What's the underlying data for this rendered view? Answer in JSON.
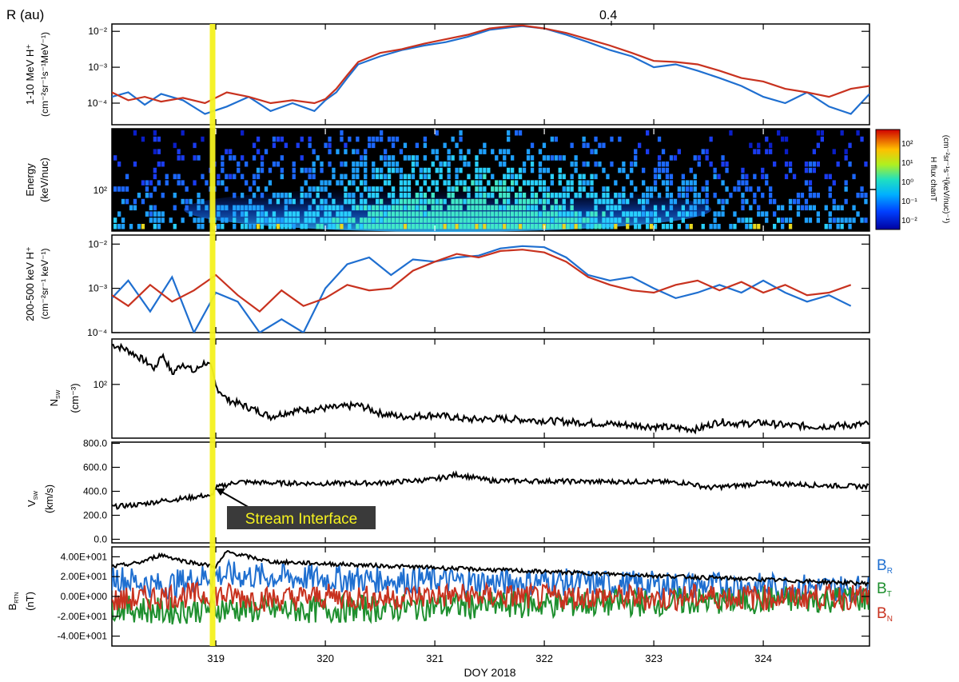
{
  "header": {
    "r_label": "R (au)",
    "r_tick": "0.4"
  },
  "xaxis": {
    "title": "DOY 2018",
    "range": [
      318.05,
      324.97
    ],
    "ticks": [
      "319",
      "320",
      "321",
      "322",
      "323",
      "324"
    ],
    "tick_values": [
      319,
      320,
      321,
      322,
      323,
      324
    ]
  },
  "interface": {
    "doy": 318.97,
    "label": "Stream Interface",
    "color": "#f5f21f"
  },
  "colors": {
    "blue": "#1f6fd0",
    "red": "#c8321f",
    "green": "#1e8f2e",
    "black": "#000000",
    "yellow": "#f5f21f"
  },
  "colorbar": {
    "title_line1": "H flux chanT",
    "title_line2": "(cm⁻²sr⁻¹s⁻¹(keV/nuc)⁻¹)",
    "ticks": [
      "10²",
      "10¹",
      "10⁰",
      "10⁻¹",
      "10⁻²"
    ]
  },
  "panels": [
    {
      "id": "flux-1-10MeV",
      "ylabel_line1": "1-10 MeV H⁺",
      "ylabel_line2": "(cm⁻²sr⁻¹s⁻¹MeV⁻¹)",
      "scale": "log",
      "yrange": [
        2.5e-05,
        0.016
      ],
      "yticks": [
        "10⁻²",
        "10⁻³",
        "10⁻⁴"
      ],
      "ytick_values": [
        0.01,
        0.001,
        0.0001
      ]
    },
    {
      "id": "energy-spectrogram",
      "ylabel_line1": "Energy",
      "ylabel_line2": "(keV/nuc)",
      "scale": "log",
      "yticks": [
        "10²"
      ]
    },
    {
      "id": "flux-200-500keV",
      "ylabel_line1": "200-500 keV H⁺",
      "ylabel_line2": "(cm⁻²sr⁻¹ keV⁻¹)",
      "scale": "log",
      "yrange": [
        0.0001,
        0.016
      ],
      "yticks": [
        "10⁻²",
        "10⁻³",
        "10⁻⁴"
      ],
      "ytick_values": [
        0.01,
        0.001,
        0.0001
      ]
    },
    {
      "id": "density",
      "ylabel_line1": "N",
      "ylabel_sub": "SW",
      "ylabel_line2": "(cm⁻³)",
      "scale": "log",
      "yrange": [
        12,
        600
      ],
      "yticks": [
        "10²"
      ],
      "ytick_values": [
        100
      ]
    },
    {
      "id": "speed",
      "ylabel_line1": "V",
      "ylabel_sub": "SW",
      "ylabel_line2": "(km/s)",
      "scale": "linear",
      "yrange": [
        -30,
        810
      ],
      "yticks": [
        "800.0",
        "600.0",
        "400.0",
        "200.0",
        "0.0"
      ],
      "ytick_values": [
        800,
        600,
        400,
        200,
        0
      ]
    },
    {
      "id": "magnetic-field",
      "ylabel_line1": "B",
      "ylabel_sub": "RTN",
      "ylabel_line2": "(nT)",
      "scale": "linear",
      "yrange": [
        -50,
        50
      ],
      "yticks": [
        "4.00E+001",
        "2.00E+001",
        "0.00E+000",
        "-2.00E+001",
        "-4.00E+001"
      ],
      "ytick_values": [
        40,
        20,
        0,
        -20,
        -40
      ]
    }
  ],
  "legend": [
    {
      "main": "B",
      "sub": "R",
      "color": "#1f6fd0"
    },
    {
      "main": "B",
      "sub": "T",
      "color": "#1e8f2e"
    },
    {
      "main": "B",
      "sub": "N",
      "color": "#c8321f"
    }
  ],
  "chart_data": {
    "type": "line",
    "x_axis": "DOY 2018",
    "panels": [
      {
        "panel": "1-10 MeV H+",
        "series": [
          {
            "color": "#1f6fd0",
            "x": [
              318.05,
              318.2,
              318.35,
              318.5,
              318.7,
              318.9,
              319.1,
              319.3,
              319.5,
              319.7,
              319.9,
              320.0,
              320.1,
              320.2,
              320.3,
              320.5,
              320.7,
              320.9,
              321.1,
              321.3,
              321.5,
              321.7,
              321.8,
              322.0,
              322.2,
              322.4,
              322.6,
              322.8,
              323.0,
              323.2,
              323.4,
              323.6,
              323.8,
              324.0,
              324.2,
              324.4,
              324.6,
              324.8,
              324.97
            ],
            "y": [
              0.00015,
              0.0002,
              9e-05,
              0.00018,
              0.00012,
              5e-05,
              8e-05,
              0.00015,
              6e-05,
              0.0001,
              6e-05,
              0.00012,
              0.0002,
              0.0005,
              0.0012,
              0.002,
              0.003,
              0.004,
              0.005,
              0.007,
              0.011,
              0.013,
              0.014,
              0.012,
              0.008,
              0.005,
              0.003,
              0.002,
              0.001,
              0.0012,
              0.0008,
              0.0005,
              0.0003,
              0.00015,
              0.0001,
              0.0002,
              8e-05,
              5e-05,
              0.00018
            ]
          },
          {
            "color": "#c8321f",
            "x": [
              318.05,
              318.2,
              318.35,
              318.5,
              318.7,
              318.9,
              319.1,
              319.3,
              319.5,
              319.7,
              319.9,
              320.0,
              320.1,
              320.2,
              320.3,
              320.5,
              320.7,
              320.9,
              321.1,
              321.3,
              321.5,
              321.7,
              321.8,
              322.0,
              322.2,
              322.4,
              322.6,
              322.8,
              323.0,
              323.2,
              323.4,
              323.6,
              323.8,
              324.0,
              324.2,
              324.4,
              324.6,
              324.8,
              324.97
            ],
            "y": [
              0.0002,
              0.00012,
              0.00015,
              0.00011,
              0.00014,
              0.0001,
              0.0002,
              0.00015,
              0.0001,
              0.00012,
              0.0001,
              0.00013,
              0.00025,
              0.0006,
              0.0014,
              0.0025,
              0.0032,
              0.0045,
              0.006,
              0.008,
              0.012,
              0.014,
              0.0145,
              0.012,
              0.009,
              0.006,
              0.004,
              0.0025,
              0.0015,
              0.0014,
              0.0012,
              0.0008,
              0.0005,
              0.0004,
              0.00025,
              0.0002,
              0.00015,
              0.00025,
              0.0003
            ]
          }
        ]
      },
      {
        "panel": "200-500 keV H+",
        "series": [
          {
            "color": "#1f6fd0",
            "x": [
              318.05,
              318.2,
              318.4,
              318.6,
              318.8,
              319.0,
              319.2,
              319.4,
              319.6,
              319.8,
              320.0,
              320.2,
              320.4,
              320.6,
              320.8,
              321.0,
              321.2,
              321.4,
              321.6,
              321.8,
              322.0,
              322.2,
              322.4,
              322.6,
              322.8,
              323.0,
              323.2,
              323.4,
              323.6,
              323.8,
              324.0,
              324.2,
              324.4,
              324.6,
              324.8
            ],
            "y": [
              0.0006,
              0.0015,
              0.0003,
              0.0018,
              0.0001,
              0.0008,
              0.0005,
              0.0001,
              0.0002,
              0.0001,
              0.001,
              0.0035,
              0.005,
              0.002,
              0.0045,
              0.004,
              0.005,
              0.0055,
              0.008,
              0.009,
              0.0085,
              0.005,
              0.002,
              0.0015,
              0.0018,
              0.001,
              0.0006,
              0.0008,
              0.0012,
              0.0008,
              0.0015,
              0.0008,
              0.0005,
              0.0007,
              0.0004
            ]
          },
          {
            "color": "#c8321f",
            "x": [
              318.05,
              318.2,
              318.4,
              318.6,
              318.8,
              319.0,
              319.2,
              319.4,
              319.6,
              319.8,
              320.0,
              320.2,
              320.4,
              320.6,
              320.8,
              321.0,
              321.2,
              321.4,
              321.6,
              321.8,
              322.0,
              322.2,
              322.4,
              322.6,
              322.8,
              323.0,
              323.2,
              323.4,
              323.6,
              323.8,
              324.0,
              324.2,
              324.4,
              324.6,
              324.8
            ],
            "y": [
              0.0007,
              0.0004,
              0.0012,
              0.0005,
              0.0009,
              0.002,
              0.0007,
              0.0003,
              0.0009,
              0.0004,
              0.0006,
              0.0012,
              0.0009,
              0.001,
              0.0025,
              0.004,
              0.006,
              0.005,
              0.007,
              0.0075,
              0.0065,
              0.004,
              0.0018,
              0.0012,
              0.0009,
              0.0008,
              0.0012,
              0.0015,
              0.0009,
              0.0014,
              0.0008,
              0.0012,
              0.0007,
              0.0008,
              0.0012
            ]
          }
        ]
      },
      {
        "panel": "N_SW",
        "series": [
          {
            "color": "#000000",
            "x": [
              318.05,
              318.15,
              318.3,
              318.45,
              318.5,
              318.6,
              318.7,
              318.8,
              318.9,
              318.95,
              319.0,
              319.1,
              319.3,
              319.5,
              319.7,
              319.9,
              320.1,
              320.3,
              320.5,
              320.7,
              321.0,
              321.3,
              321.6,
              322.0,
              322.4,
              322.8,
              323.0,
              323.2,
              323.4,
              323.6,
              323.8,
              324.0,
              324.2,
              324.5,
              324.8,
              324.97
            ],
            "y": [
              480,
              420,
              290,
              180,
              330,
              150,
              230,
              160,
              240,
              200,
              90,
              55,
              40,
              28,
              35,
              38,
              40,
              44,
              32,
              28,
              30,
              25,
              26,
              24,
              22,
              20,
              19,
              18,
              17,
              23,
              21,
              22,
              20,
              19,
              20,
              21
            ]
          }
        ]
      },
      {
        "panel": "V_SW",
        "series": [
          {
            "color": "#000000",
            "x": [
              318.05,
              318.3,
              318.5,
              318.7,
              318.9,
              318.95,
              319.0,
              319.2,
              319.5,
              320.0,
              320.5,
              321.0,
              321.2,
              321.5,
              322.0,
              322.5,
              323.0,
              323.3,
              323.5,
              323.8,
              324.0,
              324.5,
              324.97
            ],
            "y": [
              270,
              290,
              320,
              340,
              365,
              350,
              430,
              480,
              470,
              465,
              470,
              500,
              540,
              490,
              485,
              480,
              480,
              470,
              430,
              450,
              470,
              450,
              440
            ]
          }
        ]
      },
      {
        "panel": "B_RTN",
        "series": [
          {
            "name": "B_R",
            "color": "#1f6fd0",
            "x": [
              318.05,
              318.5,
              319.0,
              319.5,
              320.0,
              320.5,
              321.0,
              321.5,
              322.0,
              322.5,
              323.0,
              323.5,
              324.0,
              324.5,
              324.97
            ],
            "y": [
              20,
              10,
              22,
              20,
              18,
              17,
              16,
              14,
              15,
              13,
              12,
              11,
              10,
              9,
              8
            ]
          },
          {
            "name": "B_T",
            "color": "#1e8f2e",
            "x": [
              318.05,
              318.5,
              319.0,
              319.5,
              320.0,
              320.5,
              321.0,
              321.5,
              322.0,
              322.5,
              323.0,
              323.5,
              324.0,
              324.5,
              324.97
            ],
            "y": [
              -10,
              -15,
              -12,
              -14,
              -13,
              -12,
              -10,
              -9,
              -8,
              -7,
              -6,
              -5,
              -4,
              -3,
              -2
            ]
          },
          {
            "name": "B_N",
            "color": "#c8321f",
            "x": [
              318.05,
              318.5,
              319.0,
              319.5,
              320.0,
              320.5,
              321.0,
              321.5,
              322.0,
              322.5,
              323.0,
              323.5,
              324.0,
              324.5,
              324.97
            ],
            "y": [
              -5,
              0,
              2,
              -3,
              0,
              -2,
              1,
              0,
              -1,
              0,
              -2,
              0,
              -1,
              0,
              -1
            ]
          },
          {
            "name": "|B|",
            "color": "#000000",
            "x": [
              318.05,
              318.3,
              318.5,
              318.7,
              318.9,
              319.0,
              319.1,
              319.3,
              319.5,
              320.0,
              320.5,
              321.0,
              321.5,
              322.0,
              322.5,
              323.0,
              323.5,
              324.0,
              324.5,
              324.97
            ],
            "y": [
              30,
              34,
              42,
              36,
              32,
              30,
              45,
              40,
              35,
              33,
              31,
              29,
              27,
              25,
              23,
              21,
              19,
              17,
              15,
              13
            ]
          }
        ]
      }
    ]
  }
}
